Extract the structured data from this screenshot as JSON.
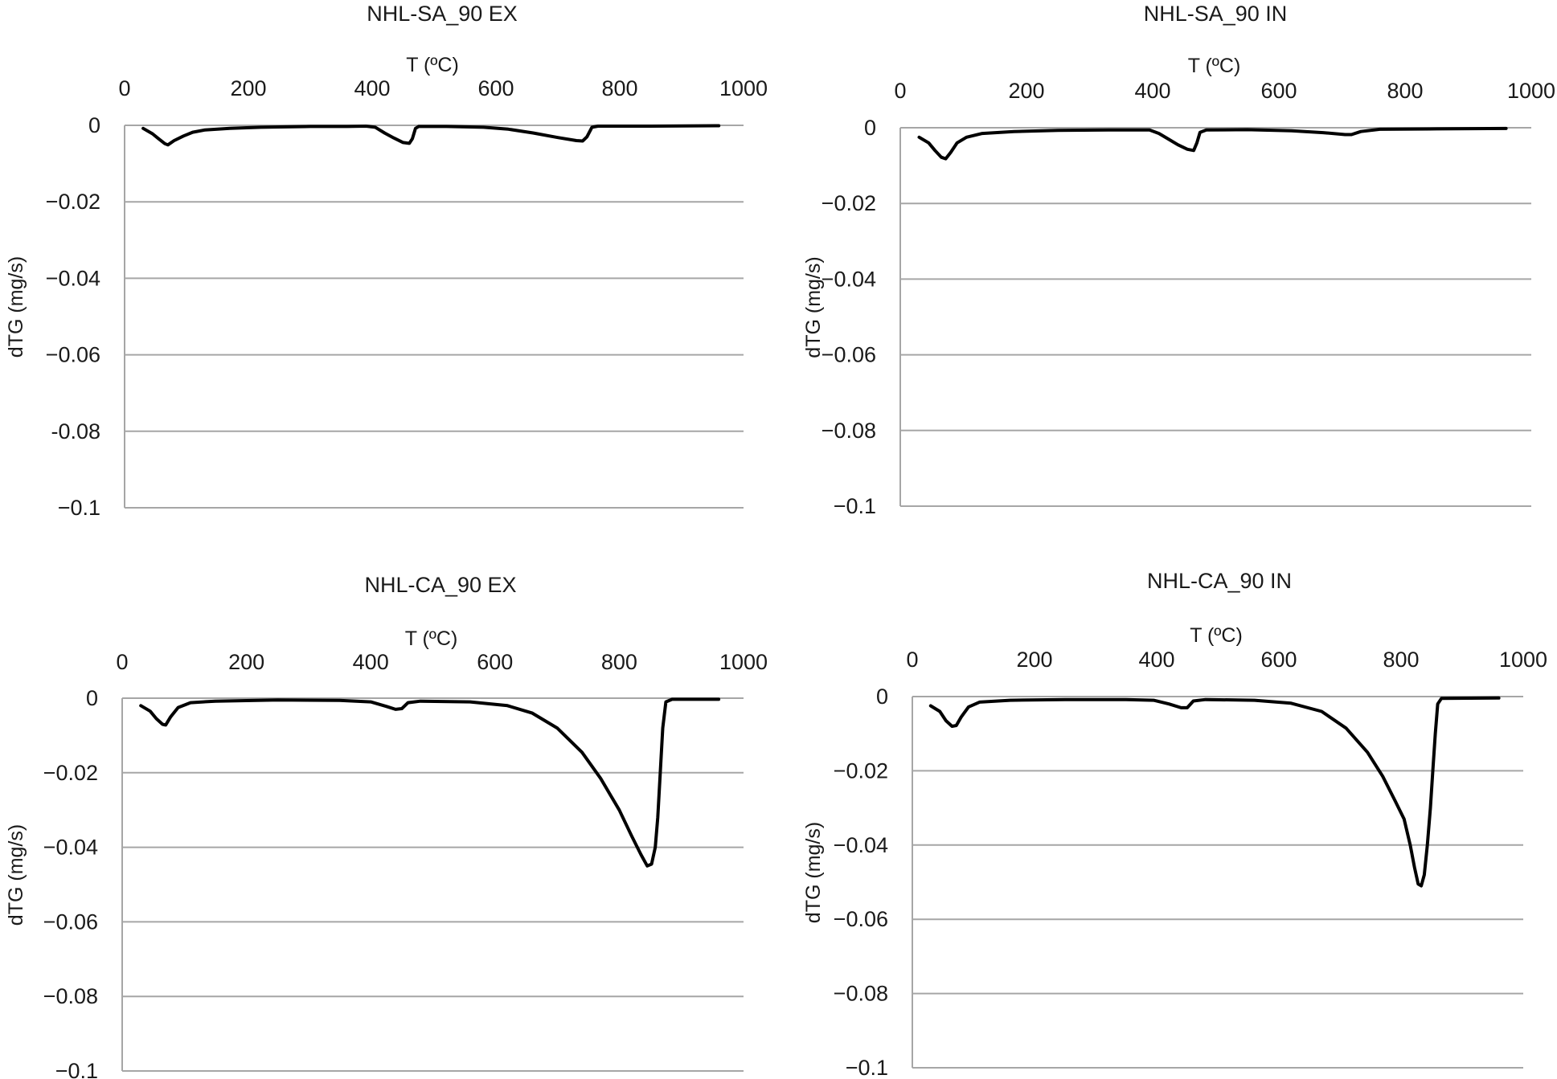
{
  "chart_data": [
    {
      "type": "line",
      "title": "NHL-SA_90 EX",
      "xlabel": "T (ºC)",
      "ylabel": "dTG (mg/s)",
      "xlim": [
        0,
        1000
      ],
      "ylim": [
        -0.1,
        0
      ],
      "x_ticks": [
        "0",
        "200",
        "400",
        "600",
        "800",
        "1000"
      ],
      "y_ticks": [
        "0",
        "−0.02",
        "−0.04",
        "−0.06",
        "-0.08",
        "−0.1"
      ],
      "grid": true,
      "line_color": "#000000",
      "series": [
        {
          "points": [
            [
              30,
              -0.0008
            ],
            [
              45,
              -0.0022
            ],
            [
              55,
              -0.0035
            ],
            [
              65,
              -0.0048
            ],
            [
              70,
              -0.0051
            ],
            [
              80,
              -0.004
            ],
            [
              95,
              -0.0028
            ],
            [
              110,
              -0.0018
            ],
            [
              130,
              -0.0012
            ],
            [
              170,
              -0.0008
            ],
            [
              220,
              -0.0005
            ],
            [
              300,
              -0.0003
            ],
            [
              360,
              -0.0003
            ],
            [
              390,
              -0.0002
            ],
            [
              405,
              -0.0005
            ],
            [
              420,
              -0.002
            ],
            [
              435,
              -0.0033
            ],
            [
              450,
              -0.0045
            ],
            [
              460,
              -0.0047
            ],
            [
              465,
              -0.0035
            ],
            [
              470,
              -0.0008
            ],
            [
              475,
              -0.0003
            ],
            [
              520,
              -0.0003
            ],
            [
              580,
              -0.0005
            ],
            [
              620,
              -0.001
            ],
            [
              660,
              -0.002
            ],
            [
              700,
              -0.0032
            ],
            [
              730,
              -0.004
            ],
            [
              740,
              -0.0041
            ],
            [
              747,
              -0.003
            ],
            [
              755,
              -0.0005
            ],
            [
              765,
              -0.0002
            ],
            [
              850,
              -0.0002
            ],
            [
              960,
              -0.0001
            ]
          ]
        }
      ]
    },
    {
      "type": "line",
      "title": "NHL-SA_90 IN",
      "xlabel": "T (ºC)",
      "ylabel": "dTG (mg/s)",
      "xlim": [
        0,
        1000
      ],
      "ylim": [
        -0.1,
        0
      ],
      "x_ticks": [
        "0",
        "200",
        "400",
        "600",
        "800",
        "1000"
      ],
      "y_ticks": [
        "0",
        "−0.02",
        "−0.04",
        "−0.06",
        "−0.08",
        "−0.1"
      ],
      "grid": true,
      "line_color": "#000000",
      "series": [
        {
          "points": [
            [
              30,
              -0.0025
            ],
            [
              45,
              -0.004
            ],
            [
              55,
              -0.006
            ],
            [
              65,
              -0.0078
            ],
            [
              72,
              -0.0082
            ],
            [
              80,
              -0.0065
            ],
            [
              90,
              -0.004
            ],
            [
              105,
              -0.0025
            ],
            [
              130,
              -0.0015
            ],
            [
              180,
              -0.001
            ],
            [
              250,
              -0.0007
            ],
            [
              330,
              -0.0006
            ],
            [
              395,
              -0.0006
            ],
            [
              410,
              -0.0015
            ],
            [
              425,
              -0.003
            ],
            [
              440,
              -0.0045
            ],
            [
              455,
              -0.0057
            ],
            [
              465,
              -0.006
            ],
            [
              470,
              -0.004
            ],
            [
              475,
              -0.0012
            ],
            [
              485,
              -0.0006
            ],
            [
              550,
              -0.0005
            ],
            [
              620,
              -0.0008
            ],
            [
              670,
              -0.0013
            ],
            [
              705,
              -0.0018
            ],
            [
              715,
              -0.0018
            ],
            [
              730,
              -0.001
            ],
            [
              760,
              -0.0004
            ],
            [
              850,
              -0.0003
            ],
            [
              960,
              -0.0002
            ]
          ]
        }
      ]
    },
    {
      "type": "line",
      "title": "NHL-CA_90 EX",
      "xlabel": "T (ºC)",
      "ylabel": "dTG (mg/s)",
      "xlim": [
        0,
        1000
      ],
      "ylim": [
        -0.1,
        0
      ],
      "x_ticks": [
        "0",
        "200",
        "400",
        "600",
        "800",
        "1000"
      ],
      "y_ticks": [
        "0",
        "−0.02",
        "−0.04",
        "−0.06",
        "−0.08",
        "−0.1"
      ],
      "grid": true,
      "line_color": "#000000",
      "series": [
        {
          "points": [
            [
              30,
              -0.002
            ],
            [
              45,
              -0.0035
            ],
            [
              55,
              -0.0055
            ],
            [
              65,
              -0.007
            ],
            [
              70,
              -0.0072
            ],
            [
              78,
              -0.005
            ],
            [
              90,
              -0.0025
            ],
            [
              110,
              -0.0012
            ],
            [
              150,
              -0.0008
            ],
            [
              250,
              -0.0005
            ],
            [
              350,
              -0.0006
            ],
            [
              400,
              -0.001
            ],
            [
              425,
              -0.0022
            ],
            [
              440,
              -0.003
            ],
            [
              450,
              -0.0028
            ],
            [
              460,
              -0.0012
            ],
            [
              480,
              -0.0008
            ],
            [
              560,
              -0.001
            ],
            [
              620,
              -0.002
            ],
            [
              660,
              -0.004
            ],
            [
              700,
              -0.008
            ],
            [
              740,
              -0.0145
            ],
            [
              770,
              -0.0215
            ],
            [
              800,
              -0.03
            ],
            [
              820,
              -0.037
            ],
            [
              835,
              -0.042
            ],
            [
              845,
              -0.045
            ],
            [
              852,
              -0.0445
            ],
            [
              858,
              -0.04
            ],
            [
              862,
              -0.032
            ],
            [
              866,
              -0.02
            ],
            [
              870,
              -0.008
            ],
            [
              875,
              -0.001
            ],
            [
              885,
              -0.0003
            ],
            [
              960,
              -0.0003
            ]
          ]
        }
      ]
    },
    {
      "type": "line",
      "title": "NHL-CA_90 IN",
      "xlabel": "T (ºC)",
      "ylabel": "dTG (mg/s)",
      "xlim": [
        0,
        1000
      ],
      "ylim": [
        -0.1,
        0
      ],
      "x_ticks": [
        "0",
        "200",
        "400",
        "600",
        "800",
        "1000"
      ],
      "y_ticks": [
        "0",
        "−0.02",
        "−0.04",
        "−0.06",
        "−0.08",
        "−0.1"
      ],
      "grid": true,
      "line_color": "#000000",
      "series": [
        {
          "points": [
            [
              30,
              -0.0025
            ],
            [
              45,
              -0.004
            ],
            [
              55,
              -0.0065
            ],
            [
              65,
              -0.008
            ],
            [
              72,
              -0.0078
            ],
            [
              80,
              -0.0055
            ],
            [
              92,
              -0.0028
            ],
            [
              110,
              -0.0015
            ],
            [
              160,
              -0.001
            ],
            [
              250,
              -0.0008
            ],
            [
              350,
              -0.0008
            ],
            [
              395,
              -0.001
            ],
            [
              420,
              -0.002
            ],
            [
              440,
              -0.003
            ],
            [
              450,
              -0.003
            ],
            [
              460,
              -0.0012
            ],
            [
              480,
              -0.0008
            ],
            [
              560,
              -0.001
            ],
            [
              620,
              -0.0018
            ],
            [
              670,
              -0.004
            ],
            [
              710,
              -0.0085
            ],
            [
              745,
              -0.015
            ],
            [
              770,
              -0.0215
            ],
            [
              790,
              -0.028
            ],
            [
              805,
              -0.033
            ],
            [
              815,
              -0.04
            ],
            [
              822,
              -0.046
            ],
            [
              828,
              -0.0505
            ],
            [
              833,
              -0.051
            ],
            [
              838,
              -0.048
            ],
            [
              843,
              -0.04
            ],
            [
              848,
              -0.03
            ],
            [
              852,
              -0.02
            ],
            [
              856,
              -0.01
            ],
            [
              860,
              -0.002
            ],
            [
              866,
              -0.0005
            ],
            [
              960,
              -0.0004
            ]
          ]
        }
      ]
    }
  ]
}
